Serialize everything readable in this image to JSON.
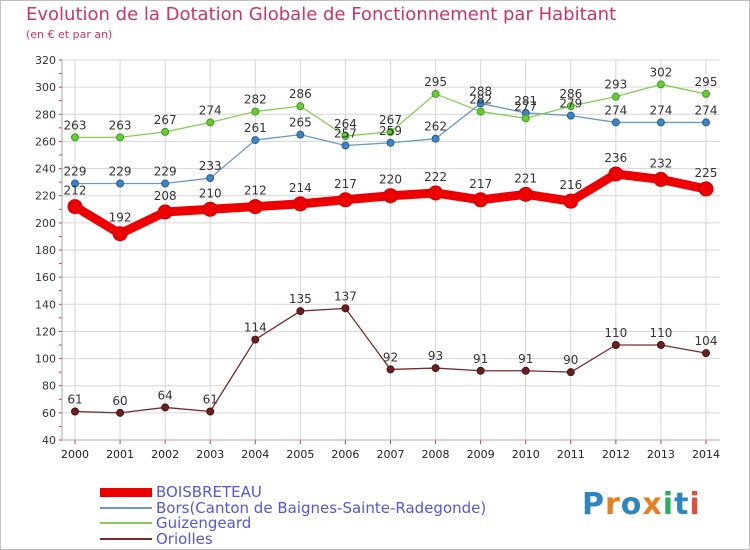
{
  "title": "Evolution de la Dotation Globale de Fonctionnement par Habitant",
  "subtitle": "(en € et par an)",
  "logo": {
    "text": "Proxiti",
    "letters": [
      "P",
      "r",
      "o",
      "x",
      "i",
      "t",
      "i"
    ],
    "colors": [
      "#2e86c1",
      "#e67e22",
      "#2e86c1",
      "#e67e22",
      "#27ae60",
      "#2e86c1",
      "#e74c3c"
    ]
  },
  "chart_data": {
    "type": "line",
    "x": [
      "2000",
      "2001",
      "2002",
      "2003",
      "2004",
      "2005",
      "2006",
      "2007",
      "2008",
      "2009",
      "2010",
      "2011",
      "2012",
      "2013",
      "2014"
    ],
    "ylim": [
      40,
      320
    ],
    "yticks": [
      "40",
      "60",
      "80",
      "100",
      "120",
      "140",
      "160",
      "180",
      "200",
      "220",
      "240",
      "260",
      "280",
      "300",
      "320"
    ],
    "grid": true,
    "legend_position": "bottom-left",
    "series": [
      {
        "name": "BOISBRETEAU",
        "color": "#ee0000",
        "values": [
          212,
          192,
          208,
          210,
          212,
          214,
          217,
          220,
          222,
          217,
          221,
          216,
          236,
          232,
          225
        ]
      },
      {
        "name": "Bors(Canton de Baignes-Sainte-Radegonde)",
        "color": "#6699cc",
        "values": [
          229,
          229,
          229,
          233,
          261,
          265,
          257,
          259,
          262,
          288,
          281,
          279,
          274,
          274,
          274
        ]
      },
      {
        "name": "Guizengeard",
        "color": "#88cc55",
        "values": [
          263,
          263,
          267,
          274,
          282,
          286,
          264,
          267,
          295,
          282,
          277,
          286,
          293,
          302,
          295
        ]
      },
      {
        "name": "Oriolles",
        "color": "#7a2a2a",
        "values": [
          61,
          60,
          64,
          61,
          114,
          135,
          137,
          92,
          93,
          91,
          91,
          90,
          110,
          110,
          104
        ]
      }
    ]
  }
}
